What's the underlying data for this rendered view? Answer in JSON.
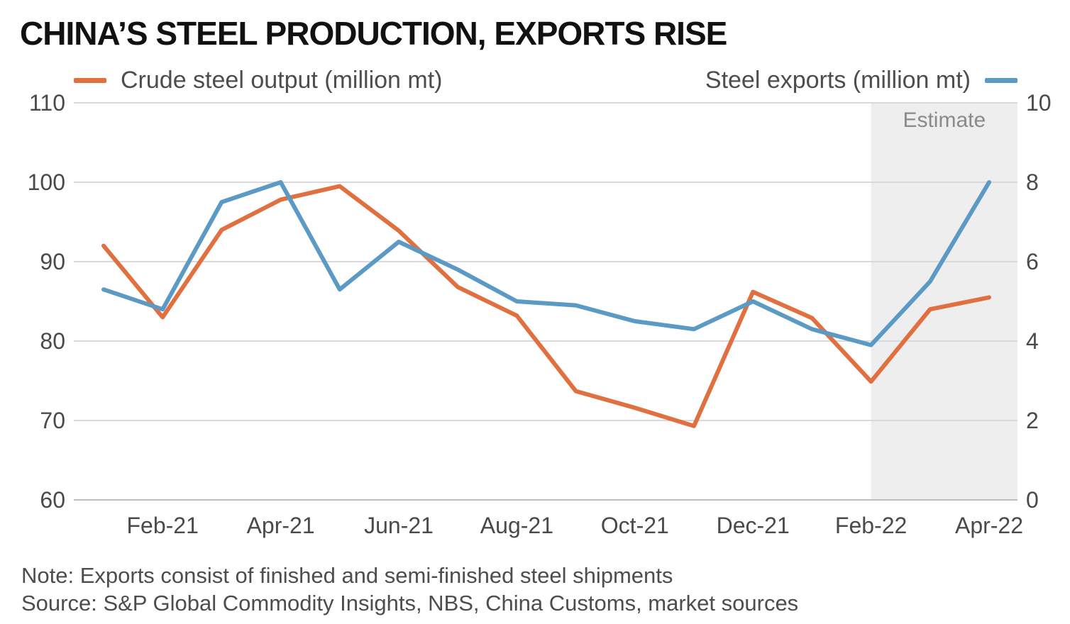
{
  "title": "CHINA’S STEEL PRODUCTION, EXPORTS RISE",
  "colors": {
    "crude_output": "#e07040",
    "exports": "#5b9ac4",
    "estimate_band": "#eeeeee",
    "grid": "#d9d9d9"
  },
  "notes": {
    "note": "Note: Exports consist of finished and semi-finished steel shipments",
    "source": "Source: S&P Global Commodity Insights, NBS, China Customs, market sources"
  },
  "chart_data": {
    "type": "line",
    "title": "CHINA’S STEEL PRODUCTION, EXPORTS RISE",
    "x": [
      "Jan-21",
      "Feb-21",
      "Mar-21",
      "Apr-21",
      "May-21",
      "Jun-21",
      "Jul-21",
      "Aug-21",
      "Sep-21",
      "Oct-21",
      "Nov-21",
      "Dec-21",
      "Jan-22",
      "Feb-22",
      "Mar-22",
      "Apr-22"
    ],
    "x_tick_labels": [
      "Feb-21",
      "Apr-21",
      "Jun-21",
      "Aug-21",
      "Oct-21",
      "Dec-21",
      "Feb-22",
      "Apr-22"
    ],
    "left_axis": {
      "ylim": [
        60,
        110
      ],
      "ticks": [
        "60",
        "70",
        "80",
        "90",
        "100",
        "110"
      ]
    },
    "right_axis": {
      "ylim": [
        0,
        10
      ],
      "ticks": [
        "0",
        "2",
        "4",
        "6",
        "8",
        "10"
      ]
    },
    "series": [
      {
        "name": "Crude steel output (million mt)",
        "axis": "left",
        "values": [
          92.0,
          83.0,
          94.0,
          97.8,
          99.5,
          93.9,
          86.8,
          83.2,
          73.7,
          71.6,
          69.3,
          86.2,
          82.9,
          74.9,
          84.0,
          85.5
        ]
      },
      {
        "name": "Steel exports (million mt)",
        "axis": "right",
        "values": [
          5.3,
          4.8,
          7.5,
          8.0,
          5.3,
          6.5,
          5.8,
          5.0,
          4.9,
          4.5,
          4.3,
          5.0,
          4.3,
          3.9,
          5.5,
          8.0
        ]
      }
    ],
    "estimate_region": {
      "label": "Estimate",
      "from": "Feb-22",
      "to": "Apr-22"
    },
    "grid": true,
    "legend": "top"
  }
}
